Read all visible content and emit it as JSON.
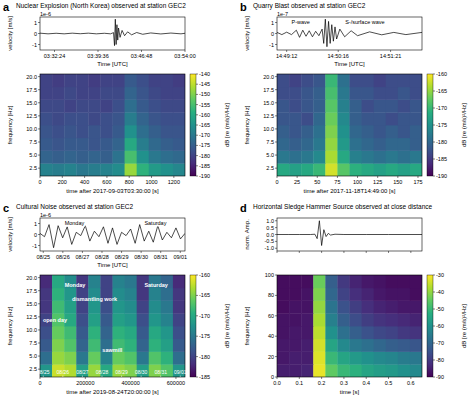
{
  "chart_data": [
    {
      "type": "seismogram",
      "letter": "a",
      "title": "Nuclear Explosion (North Korea) observed at station GEC2",
      "waveform": {
        "type": "line",
        "offset_label": "1e-6",
        "ylabel": "velocity [m/s]",
        "xlabel": "Time [UTC]",
        "color": "#000000",
        "x": [
          0,
          80,
          160,
          240,
          320,
          400,
          480,
          560,
          640,
          700,
          730,
          740,
          748,
          756,
          764,
          772,
          780,
          795,
          815,
          840,
          870,
          910,
          960,
          1020,
          1100,
          1200,
          1300,
          1400,
          1440
        ],
        "values": [
          0.03,
          -0.03,
          0.02,
          -0.03,
          0.03,
          -0.02,
          0.03,
          -0.03,
          0.02,
          -0.03,
          0.08,
          -1.1,
          1.3,
          -1.0,
          0.8,
          -0.6,
          0.5,
          -0.35,
          0.28,
          -0.2,
          0.15,
          -0.12,
          0.09,
          -0.07,
          0.05,
          -0.04,
          0.04,
          -0.03,
          0.02
        ],
        "xlim": [
          0,
          1440
        ],
        "ylim": [
          -1.5,
          1.5
        ],
        "yticks": [
          -1,
          0,
          1
        ],
        "xticks": [
          {
            "value": 144,
            "label": "03:32:24"
          },
          {
            "value": 576,
            "label": "03:39:36"
          },
          {
            "value": 1008,
            "label": "03:46:48"
          },
          {
            "value": 1440,
            "label": "03:54:00"
          }
        ]
      },
      "spectrogram": {
        "type": "heatmap",
        "xlabel": "time after 2017-09-03T03:30:00 [s]",
        "ylabel": "frequency [Hz]",
        "xlim": [
          0,
          1300
        ],
        "ylim": [
          1,
          20.5
        ],
        "xticks": [
          0,
          200,
          400,
          600,
          800,
          1000,
          1200
        ],
        "yticks": [
          2.5,
          {
            "value": 5,
            "label": "5.0"
          },
          7.5,
          {
            "value": 10,
            "label": "10.0"
          },
          12.5,
          {
            "value": 15,
            "label": "15.0"
          },
          17.5,
          {
            "value": 20,
            "label": "20.0"
          }
        ],
        "clim": [
          -190,
          -140
        ],
        "cticks": [
          -190,
          -185,
          -180,
          -175,
          -170,
          -165,
          -160,
          -155,
          -150,
          -145,
          -140
        ],
        "colorbar_label": "dB [re (m/s)²/Hz]",
        "cells": [
          [
            -168,
            -169,
            -168,
            -170,
            -169,
            -168,
            -166,
            -148,
            -158,
            -163,
            -165,
            -167
          ],
          [
            -174,
            -175,
            -174,
            -175,
            -174,
            -175,
            -171,
            -155,
            -165,
            -170,
            -172,
            -173
          ],
          [
            -176,
            -177,
            -176,
            -176,
            -177,
            -176,
            -174,
            -160,
            -169,
            -173,
            -175,
            -176
          ],
          [
            -177,
            -178,
            -177,
            -178,
            -177,
            -178,
            -176,
            -165,
            -172,
            -175,
            -177,
            -177
          ],
          [
            -178,
            -179,
            -178,
            -178,
            -179,
            -178,
            -177,
            -169,
            -174,
            -177,
            -178,
            -178
          ],
          [
            -179,
            -179,
            -180,
            -179,
            -179,
            -180,
            -178,
            -172,
            -176,
            -178,
            -179,
            -179
          ],
          [
            -180,
            -180,
            -179,
            -180,
            -180,
            -179,
            -179,
            -174,
            -177,
            -179,
            -180,
            -180
          ],
          [
            -180,
            -181,
            -180,
            -180,
            -181,
            -180,
            -180,
            -176,
            -178,
            -180,
            -180,
            -181
          ]
        ]
      }
    },
    {
      "type": "seismogram",
      "letter": "b",
      "title": "Quarry Blast observed at station GEC2",
      "waveform": {
        "type": "line",
        "offset_label": "1e-7",
        "ylabel": "velocity [m/s]",
        "xlabel": "Time [UTC]",
        "color": "#000000",
        "annotations": [
          "P-wave",
          "S-/surface wave"
        ],
        "x": [
          0,
          6,
          12,
          18,
          24,
          28,
          32,
          36,
          40,
          44,
          48,
          52,
          56,
          58,
          60,
          62,
          64,
          66,
          68,
          70,
          72,
          74,
          78,
          84,
          92,
          100,
          115,
          130,
          145,
          160,
          180
        ],
        "values": [
          0.1,
          -0.1,
          0.12,
          -0.1,
          0.3,
          -0.35,
          0.3,
          -0.25,
          0.25,
          -0.3,
          0.2,
          -0.2,
          0.4,
          -0.9,
          1.3,
          -1.2,
          1.1,
          -0.9,
          0.8,
          -0.7,
          0.6,
          -0.5,
          0.4,
          -0.3,
          0.25,
          -0.2,
          0.15,
          -0.12,
          0.1,
          -0.1,
          0.1
        ],
        "xlim": [
          0,
          180
        ],
        "ylim": [
          -1.5,
          1.5
        ],
        "yticks": [
          -1,
          0,
          1
        ],
        "xticks": [
          {
            "value": 12,
            "label": "14:49:12"
          },
          {
            "value": 76,
            "label": "14:50:16"
          },
          {
            "value": 141,
            "label": "14:51:21"
          }
        ]
      },
      "spectrogram": {
        "type": "heatmap",
        "xlabel": "time after 2017-11-18T14:49:00 [s]",
        "ylabel": "frequency [Hz]",
        "xlim": [
          0,
          180
        ],
        "ylim": [
          1,
          20.5
        ],
        "xticks": [
          0,
          25,
          50,
          75,
          100,
          125,
          150,
          175
        ],
        "yticks": [
          2.5,
          {
            "value": 5,
            "label": "5.0"
          },
          7.5,
          {
            "value": 10,
            "label": "10.0"
          },
          12.5,
          {
            "value": 15,
            "label": "15.0"
          },
          17.5,
          {
            "value": 20,
            "label": "20.0"
          }
        ],
        "clim": [
          -190,
          -160
        ],
        "cticks": [
          -190,
          -185,
          -180,
          -175,
          -170,
          -165,
          -160
        ],
        "colorbar_label": "dB [re (m/s)²/Hz]",
        "cells": [
          [
            -172,
            -173,
            -172,
            -170,
            -162,
            -168,
            -171,
            -172,
            -173,
            -172,
            -173,
            -172
          ],
          [
            -178,
            -179,
            -178,
            -176,
            -164,
            -172,
            -177,
            -178,
            -179,
            -178,
            -179,
            -178
          ],
          [
            -180,
            -181,
            -180,
            -178,
            -165,
            -174,
            -179,
            -180,
            -181,
            -180,
            -180,
            -181
          ],
          [
            -181,
            -182,
            -181,
            -179,
            -166,
            -175,
            -180,
            -181,
            -182,
            -181,
            -182,
            -181
          ],
          [
            -182,
            -182,
            -183,
            -180,
            -167,
            -176,
            -181,
            -182,
            -182,
            -183,
            -182,
            -182
          ],
          [
            -182,
            -183,
            -182,
            -181,
            -168,
            -177,
            -181,
            -183,
            -182,
            -182,
            -183,
            -182
          ],
          [
            -183,
            -183,
            -182,
            -181,
            -169,
            -178,
            -182,
            -182,
            -183,
            -183,
            -182,
            -183
          ],
          [
            -183,
            -184,
            -183,
            -182,
            -170,
            -179,
            -183,
            -183,
            -184,
            -183,
            -183,
            -183
          ]
        ]
      }
    },
    {
      "type": "seismogram",
      "letter": "c",
      "title": "Cultural Noise observed at station GEC2",
      "waveform": {
        "type": "line",
        "offset_label": "1e-6",
        "ylabel": "velocity [m/s]",
        "xlabel": "Time [UTC]",
        "color": "#000000",
        "annotations": [
          "Monday",
          "Saturday"
        ],
        "x": [
          0,
          20000,
          40000,
          60000,
          80000,
          100000,
          120000,
          140000,
          160000,
          180000,
          200000,
          220000,
          240000,
          260000,
          280000,
          300000,
          320000,
          340000,
          360000,
          380000,
          400000,
          420000,
          440000,
          460000,
          480000,
          500000,
          520000,
          540000,
          560000,
          580000,
          600000,
          620000,
          640000
        ],
        "values": [
          0.1,
          -0.2,
          0.9,
          -1.2,
          0.8,
          -0.3,
          0.7,
          -0.9,
          0.2,
          -0.1,
          0.8,
          -0.6,
          0.3,
          -0.2,
          0.7,
          -0.8,
          0.6,
          -0.9,
          0.2,
          -0.1,
          0.5,
          -0.8,
          0.9,
          -0.6,
          0.3,
          -0.7,
          0.8,
          -0.5,
          0.2,
          -0.3,
          0.6,
          -0.4,
          0.1
        ],
        "xlim": [
          0,
          640000
        ],
        "ylim": [
          -1.5,
          1.5
        ],
        "yticks": [
          -1,
          0,
          1
        ],
        "xticks": [
          {
            "value": 14400,
            "label": "08/25"
          },
          {
            "value": 100800,
            "label": "08/26"
          },
          {
            "value": 187200,
            "label": "08/27"
          },
          {
            "value": 273600,
            "label": "08/28"
          },
          {
            "value": 360000,
            "label": "08/29"
          },
          {
            "value": 446400,
            "label": "08/30"
          },
          {
            "value": 532800,
            "label": "08/31"
          },
          {
            "value": 619200,
            "label": "09/01"
          }
        ]
      },
      "spectrogram": {
        "type": "heatmap",
        "xlabel": "time after 2019-08-24T20:00:00 [s]",
        "ylabel": "frequency [Hz]",
        "annotations": [
          "Monday",
          "Saturday",
          "open day",
          "dismantling work",
          "sawmill"
        ],
        "date_labels": [
          {
            "value": 14400,
            "label": "08/25"
          },
          {
            "value": 100800,
            "label": "08/26"
          },
          {
            "value": 187200,
            "label": "08/27"
          },
          {
            "value": 273600,
            "label": "08/28"
          },
          {
            "value": 360000,
            "label": "08/29"
          },
          {
            "value": 446400,
            "label": "08/30"
          },
          {
            "value": 532800,
            "label": "08/31"
          },
          {
            "value": 619200,
            "label": "09/01"
          }
        ],
        "xlim": [
          0,
          640000
        ],
        "ylim": [
          1,
          20.5
        ],
        "xticks": [
          0,
          200000,
          400000,
          600000
        ],
        "yticks": [
          2.5,
          {
            "value": 5,
            "label": "5.0"
          },
          7.5,
          {
            "value": 10,
            "label": "10.0"
          },
          12.5,
          {
            "value": 15,
            "label": "15.0"
          },
          17.5,
          {
            "value": 20,
            "label": "20.0"
          }
        ],
        "clim": [
          -185,
          -160
        ],
        "cticks": [
          -185,
          -180,
          -175,
          -170,
          -165,
          -160
        ],
        "colorbar_label": "dB [re (m/s)²/Hz]",
        "cells": [
          [
            -172,
            -162,
            -163,
            -171,
            -164,
            -170,
            -164,
            -165,
            -171,
            -165,
            -167,
            -172
          ],
          [
            -176,
            -164,
            -165,
            -175,
            -166,
            -174,
            -166,
            -167,
            -175,
            -167,
            -169,
            -176
          ],
          [
            -178,
            -165,
            -167,
            -177,
            -168,
            -176,
            -168,
            -169,
            -177,
            -169,
            -171,
            -178
          ],
          [
            -179,
            -166,
            -168,
            -178,
            -169,
            -177,
            -169,
            -170,
            -178,
            -170,
            -172,
            -179
          ],
          [
            -180,
            -167,
            -170,
            -179,
            -171,
            -178,
            -171,
            -172,
            -179,
            -172,
            -174,
            -180
          ],
          [
            -181,
            -168,
            -171,
            -180,
            -172,
            -179,
            -172,
            -173,
            -180,
            -173,
            -175,
            -181
          ],
          [
            -181,
            -169,
            -172,
            -180,
            -173,
            -180,
            -173,
            -174,
            -181,
            -174,
            -176,
            -181
          ],
          [
            -182,
            -170,
            -173,
            -181,
            -174,
            -180,
            -174,
            -175,
            -181,
            -175,
            -177,
            -182
          ]
        ]
      }
    },
    {
      "type": "seismogram",
      "letter": "d",
      "title": "Horizontal Sledge Hammer Source observed at close distance",
      "waveform": {
        "type": "line",
        "ylabel": "norm. Amp.",
        "color": "#000000",
        "tick_labels": "y",
        "x": [
          0,
          0.05,
          0.1,
          0.15,
          0.17,
          0.18,
          0.19,
          0.2,
          0.21,
          0.22,
          0.23,
          0.24,
          0.26,
          0.3,
          0.4,
          0.5,
          0.65
        ],
        "values": [
          0,
          0,
          0,
          0,
          0.02,
          -0.3,
          1.0,
          -0.8,
          0.35,
          -0.15,
          0.08,
          -0.04,
          0.02,
          0,
          0,
          0,
          0
        ],
        "xlim": [
          0,
          0.65
        ],
        "ylim": [
          -1.2,
          1.2
        ],
        "yticks": [
          {
            "value": -1,
            "label": "-1.0"
          },
          -0.5,
          {
            "value": 0,
            "label": "0.0"
          },
          0.5,
          {
            "value": 1,
            "label": "1.0"
          }
        ],
        "xticks": [
          0,
          0.1,
          0.2,
          0.3,
          0.4,
          0.5,
          0.6
        ]
      },
      "spectrogram": {
        "type": "heatmap",
        "xlabel": "time [s]",
        "ylabel": "frequency [Hz]",
        "xlim": [
          0,
          0.65
        ],
        "ylim": [
          0,
          100
        ],
        "xticks": [
          {
            "value": 0,
            "label": "0.0"
          },
          0.1,
          0.2,
          0.3,
          0.4,
          0.5,
          0.6
        ],
        "yticks": [
          0,
          20,
          40,
          60,
          80,
          100
        ],
        "clim": [
          -90,
          -30
        ],
        "cticks": [
          -90,
          -80,
          -70,
          -60,
          -50,
          -40,
          -30
        ],
        "colorbar_label": "dB [re (m/s)²/Hz]",
        "cells": [
          [
            -85,
            -85,
            -84,
            -32,
            -45,
            -50,
            -52,
            -55,
            -57,
            -58,
            -60,
            -62
          ],
          [
            -86,
            -85,
            -85,
            -33,
            -50,
            -55,
            -58,
            -60,
            -62,
            -63,
            -65,
            -66
          ],
          [
            -86,
            -86,
            -85,
            -34,
            -55,
            -62,
            -66,
            -68,
            -70,
            -72,
            -73,
            -74
          ],
          [
            -87,
            -86,
            -86,
            -36,
            -60,
            -68,
            -72,
            -75,
            -77,
            -78,
            -80,
            -81
          ],
          [
            -87,
            -87,
            -86,
            -38,
            -64,
            -72,
            -76,
            -79,
            -81,
            -82,
            -83,
            -84
          ],
          [
            -88,
            -87,
            -87,
            -40,
            -67,
            -75,
            -79,
            -82,
            -84,
            -85,
            -86,
            -86
          ],
          [
            -88,
            -88,
            -87,
            -42,
            -70,
            -78,
            -82,
            -84,
            -86,
            -87,
            -87,
            -88
          ],
          [
            -88,
            -88,
            -88,
            -44,
            -72,
            -80,
            -84,
            -86,
            -87,
            -88,
            -88,
            -88
          ]
        ]
      }
    }
  ]
}
